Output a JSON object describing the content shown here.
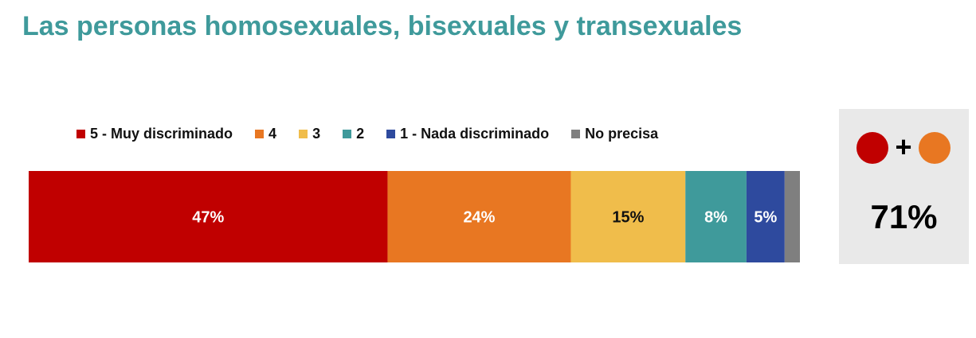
{
  "title": "Las personas homosexuales, bisexuales y transexuales",
  "chart_data": {
    "type": "bar",
    "orientation": "horizontal-stacked",
    "categories": [
      ""
    ],
    "series": [
      {
        "name": "5 - Muy discriminado",
        "values": [
          47
        ],
        "label": "47%",
        "color": "#c00000",
        "label_color": "#ffffff"
      },
      {
        "name": "4",
        "values": [
          24
        ],
        "label": "24%",
        "color": "#e87722",
        "label_color": "#ffffff"
      },
      {
        "name": "3",
        "values": [
          15
        ],
        "label": "15%",
        "color": "#f0bd4b",
        "label_color": "#111111"
      },
      {
        "name": "2",
        "values": [
          8
        ],
        "label": "8%",
        "color": "#3f9a9b",
        "label_color": "#ffffff"
      },
      {
        "name": "1 - Nada discriminado",
        "values": [
          5
        ],
        "label": "5%",
        "color": "#2e4a9e",
        "label_color": "#ffffff"
      },
      {
        "name": "No precisa",
        "values": [
          2
        ],
        "label": "",
        "color": "#7f7f7f",
        "label_color": "#ffffff"
      }
    ],
    "legend_position": "top",
    "grid": false
  },
  "summary": {
    "plus": "+",
    "value": "71%",
    "color_a": "#c00000",
    "color_b": "#e87722"
  }
}
